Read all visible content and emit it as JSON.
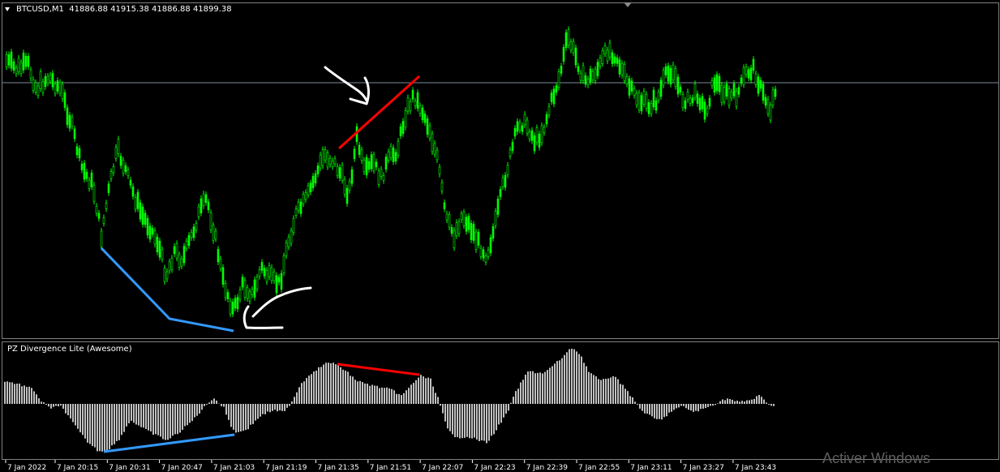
{
  "main_pane": {
    "symbol": "BTCUSD,M1",
    "ohlc": "41886.88 41915.38 41886.88 41899.38"
  },
  "indicator_pane": {
    "title": "PZ Divergence Lite (Awesome)"
  },
  "time_axis": {
    "labels": [
      "7 Jan 2022",
      "7 Jan 20:15",
      "7 Jan 20:31",
      "7 Jan 20:47",
      "7 Jan 21:03",
      "7 Jan 21:19",
      "7 Jan 21:35",
      "7 Jan 21:51",
      "7 Jan 22:07",
      "7 Jan 22:23",
      "7 Jan 22:39",
      "7 Jan 22:55",
      "7 Jan 23:11",
      "7 Jan 23:27",
      "7 Jan 23:43"
    ]
  },
  "watermark": "Activer Windows",
  "colors": {
    "candle": "#00ff00",
    "oscillator": "#c0c0c0",
    "bearish_divergence": "#ff0000",
    "bullish_divergence": "#3399ff",
    "grid": "#808080",
    "bid_line": "#7b8a9a",
    "annotation": "#ffffff"
  },
  "icons": [
    "dropdown-triangle-icon",
    "scroll-marker-icon"
  ]
}
